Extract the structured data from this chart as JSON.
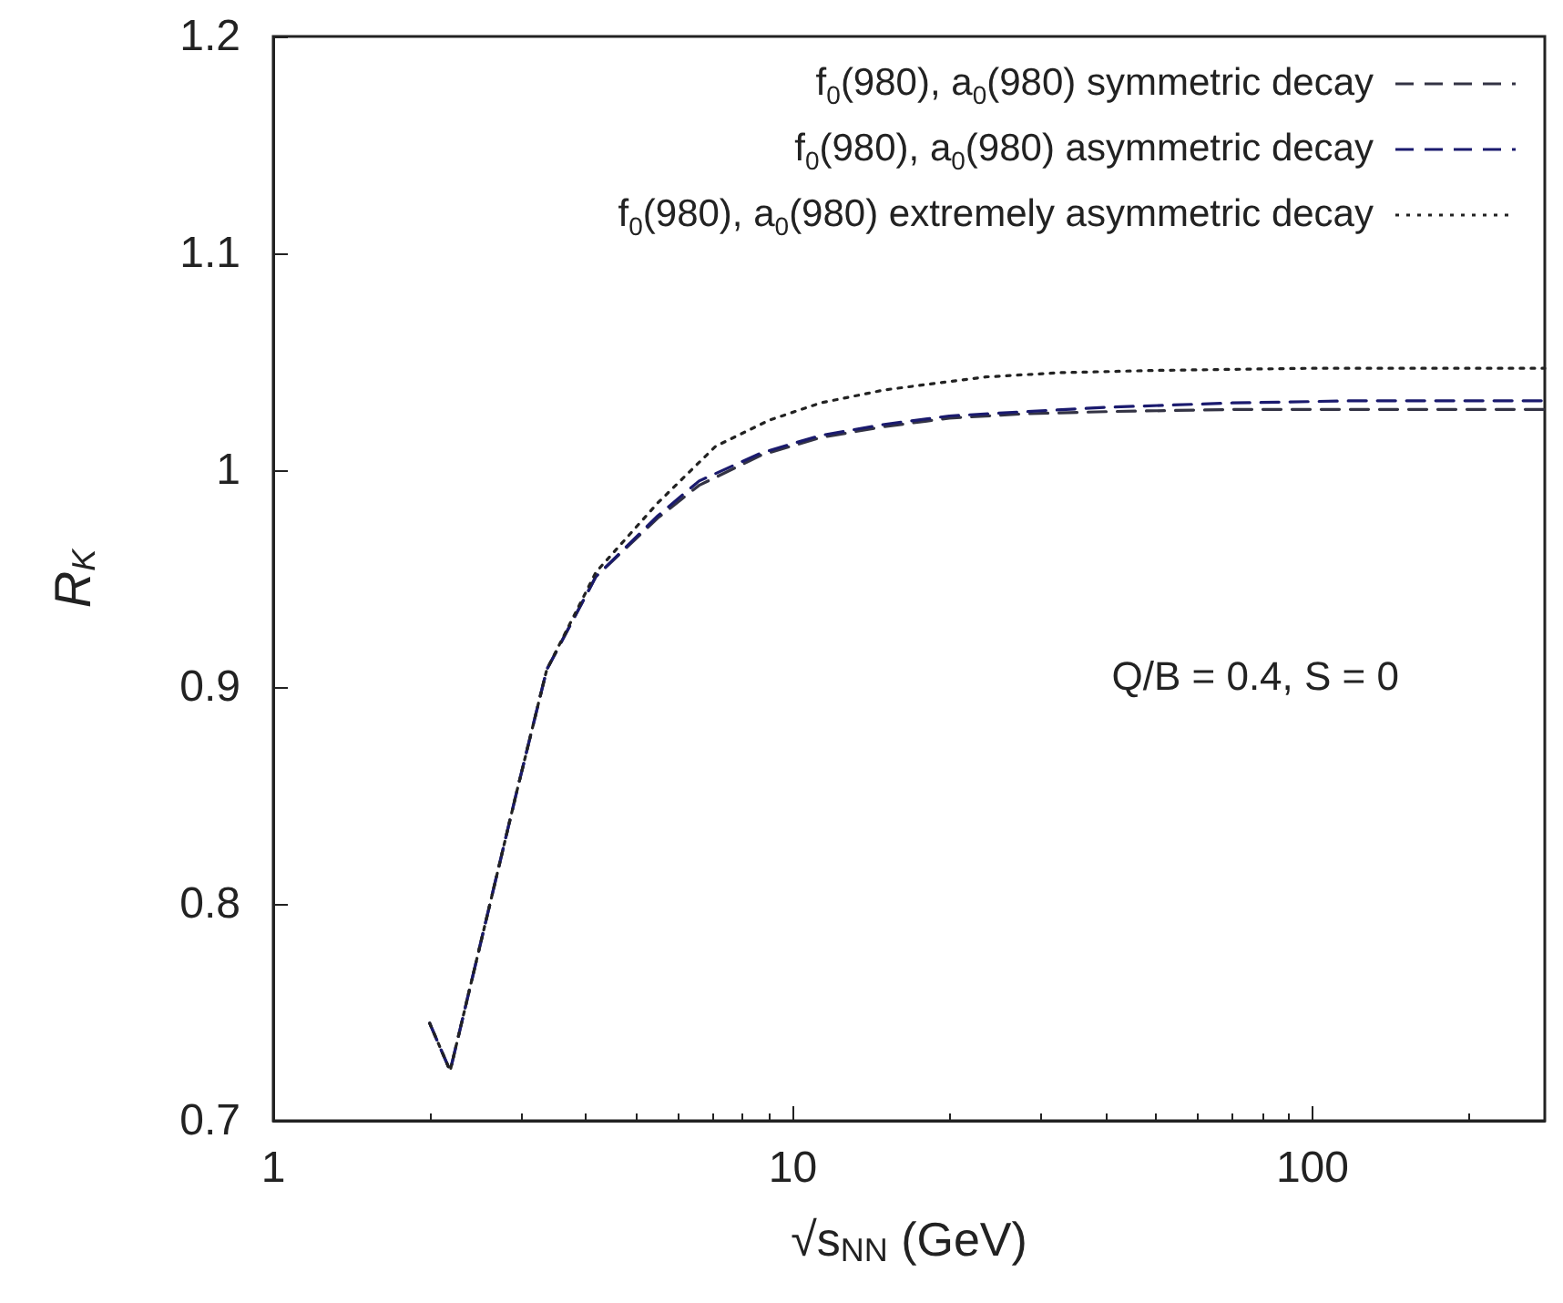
{
  "chart_data": {
    "type": "line",
    "xlabel": "√s$_{NN}$ (GeV)",
    "ylabel": "R$_{K}$",
    "log": "x",
    "xlim": [
      1,
      280
    ],
    "xticks": [
      1,
      10,
      100
    ],
    "ylim": [
      0.7,
      1.2
    ],
    "yticks": [
      0.7,
      0.8,
      0.9,
      1,
      1.1,
      1.2
    ],
    "grid": false,
    "legend": "top right",
    "marker": "none",
    "annotations": [
      "Q/B = 0.4, S = 0"
    ],
    "series": [
      {
        "name": "f$_{0}$(980), a$_{0}$(980) symmetric decay",
        "color": "#333344",
        "line_style": "dashed",
        "x": [
          2.0,
          2.19,
          2.93,
          3.36,
          4.18,
          5.5,
          6.6,
          8.7,
          11.3,
          14.9,
          20,
          28,
          40,
          70,
          120,
          280
        ],
        "values": [
          0.745,
          0.723,
          0.85,
          0.908,
          0.951,
          0.978,
          0.993,
          1.007,
          1.015,
          1.02,
          1.024,
          1.026,
          1.027,
          1.028,
          1.028,
          1.028
        ]
      },
      {
        "name": "f$_{0}$(980), a$_{0}$(980) asymmetric decay",
        "color": "#1a1a6e",
        "line_style": "dashed",
        "x": [
          2.0,
          2.19,
          2.93,
          3.36,
          4.18,
          5.5,
          6.6,
          8.7,
          11.3,
          14.9,
          20,
          28,
          40,
          70,
          120,
          280
        ],
        "values": [
          0.745,
          0.723,
          0.85,
          0.908,
          0.951,
          0.979,
          0.995,
          1.008,
          1.016,
          1.021,
          1.025,
          1.027,
          1.029,
          1.031,
          1.032,
          1.032
        ]
      },
      {
        "name": "f$_{0}$(980), a$_{0}$(980) extremely asymmetric decay",
        "color": "#222222",
        "line_style": "dotted",
        "x": [
          2.0,
          2.19,
          2.93,
          3.36,
          4.18,
          5.5,
          7.1,
          9,
          11.3,
          15,
          23.5,
          33,
          50,
          100,
          280
        ],
        "values": [
          0.745,
          0.723,
          0.85,
          0.908,
          0.953,
          0.985,
          1.011,
          1.023,
          1.031,
          1.037,
          1.043,
          1.045,
          1.046,
          1.047,
          1.047
        ]
      }
    ]
  }
}
